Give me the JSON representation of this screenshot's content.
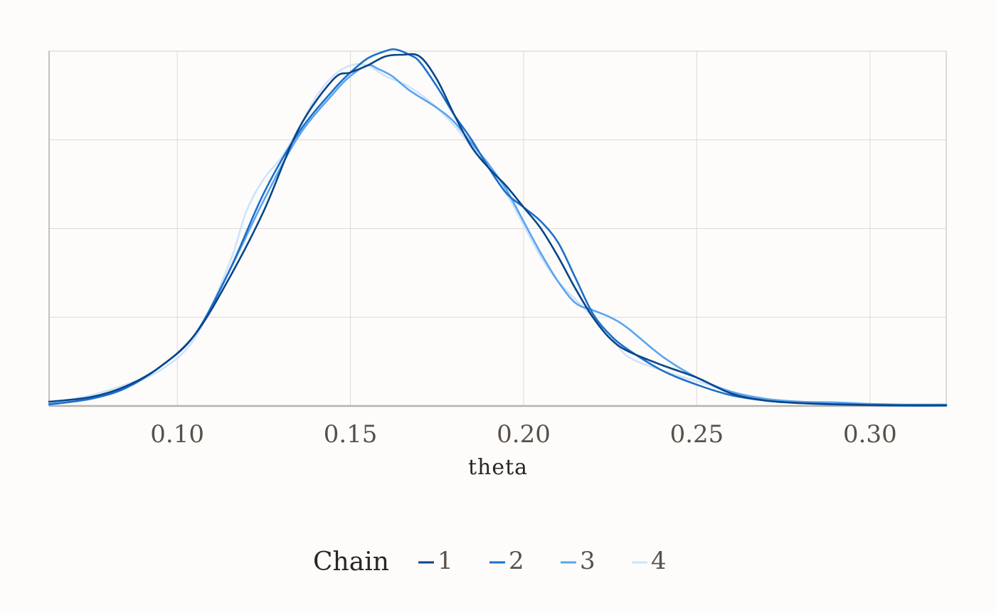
{
  "chart_data": {
    "type": "line",
    "title": "",
    "xlabel": "theta",
    "ylabel": "",
    "xlim": [
      0.063,
      0.322
    ],
    "ylim": [
      0,
      1.0
    ],
    "x_ticks": [
      0.1,
      0.15,
      0.2,
      0.25,
      0.3
    ],
    "x_tick_labels": [
      "0.10",
      "0.15",
      "0.20",
      "0.25",
      "0.30"
    ],
    "y_gridlines": [
      0.25,
      0.5,
      0.75,
      1.0
    ],
    "grid": true,
    "legend": {
      "title": "Chain",
      "position": "bottom"
    },
    "series": [
      {
        "name": "1",
        "color": "#08458a",
        "x": [
          0.063,
          0.075,
          0.085,
          0.095,
          0.105,
          0.115,
          0.125,
          0.135,
          0.145,
          0.15,
          0.155,
          0.16,
          0.165,
          0.17,
          0.175,
          0.18,
          0.185,
          0.19,
          0.195,
          0.2,
          0.205,
          0.21,
          0.215,
          0.22,
          0.225,
          0.23,
          0.24,
          0.25,
          0.26,
          0.27,
          0.28,
          0.29,
          0.3,
          0.31,
          0.322
        ],
        "y": [
          0.012,
          0.025,
          0.055,
          0.11,
          0.2,
          0.36,
          0.55,
          0.78,
          0.92,
          0.94,
          0.96,
          0.985,
          0.99,
          0.985,
          0.92,
          0.82,
          0.73,
          0.67,
          0.62,
          0.56,
          0.5,
          0.42,
          0.33,
          0.25,
          0.19,
          0.155,
          0.115,
          0.08,
          0.035,
          0.015,
          0.008,
          0.005,
          0.003,
          0.002,
          0.002
        ]
      },
      {
        "name": "2",
        "color": "#1c6fc9",
        "x": [
          0.063,
          0.075,
          0.085,
          0.095,
          0.105,
          0.115,
          0.125,
          0.135,
          0.145,
          0.15,
          0.155,
          0.16,
          0.163,
          0.167,
          0.17,
          0.175,
          0.18,
          0.185,
          0.19,
          0.195,
          0.2,
          0.205,
          0.21,
          0.215,
          0.22,
          0.225,
          0.23,
          0.24,
          0.25,
          0.26,
          0.27,
          0.28,
          0.29,
          0.3,
          0.31,
          0.322
        ],
        "y": [
          0.005,
          0.02,
          0.05,
          0.11,
          0.2,
          0.38,
          0.6,
          0.77,
          0.89,
          0.94,
          0.98,
          1.0,
          1.005,
          0.99,
          0.97,
          0.9,
          0.82,
          0.75,
          0.67,
          0.6,
          0.56,
          0.52,
          0.46,
          0.36,
          0.26,
          0.2,
          0.16,
          0.1,
          0.06,
          0.03,
          0.015,
          0.008,
          0.004,
          0.002,
          0.001,
          0.001
        ]
      },
      {
        "name": "3",
        "color": "#5aa4f0",
        "x": [
          0.063,
          0.075,
          0.085,
          0.095,
          0.105,
          0.115,
          0.125,
          0.135,
          0.145,
          0.15,
          0.155,
          0.158,
          0.162,
          0.167,
          0.175,
          0.18,
          0.185,
          0.19,
          0.195,
          0.2,
          0.205,
          0.21,
          0.215,
          0.22,
          0.225,
          0.23,
          0.24,
          0.25,
          0.26,
          0.27,
          0.28,
          0.29,
          0.3,
          0.31,
          0.322
        ],
        "y": [
          0.004,
          0.02,
          0.05,
          0.11,
          0.2,
          0.38,
          0.58,
          0.76,
          0.88,
          0.93,
          0.96,
          0.95,
          0.93,
          0.89,
          0.84,
          0.8,
          0.74,
          0.68,
          0.61,
          0.52,
          0.43,
          0.35,
          0.29,
          0.27,
          0.25,
          0.22,
          0.14,
          0.08,
          0.04,
          0.02,
          0.012,
          0.01,
          0.006,
          0.004,
          0.004
        ]
      },
      {
        "name": "4",
        "color": "#cfe3fb",
        "x": [
          0.063,
          0.075,
          0.085,
          0.095,
          0.105,
          0.115,
          0.12,
          0.125,
          0.13,
          0.135,
          0.14,
          0.145,
          0.15,
          0.155,
          0.16,
          0.165,
          0.17,
          0.175,
          0.18,
          0.185,
          0.19,
          0.195,
          0.2,
          0.205,
          0.21,
          0.215,
          0.22,
          0.225,
          0.23,
          0.24,
          0.25,
          0.26,
          0.27,
          0.28,
          0.29,
          0.3,
          0.31,
          0.322
        ],
        "y": [
          0.008,
          0.03,
          0.06,
          0.1,
          0.19,
          0.4,
          0.55,
          0.64,
          0.7,
          0.78,
          0.87,
          0.93,
          0.96,
          0.96,
          0.93,
          0.91,
          0.88,
          0.84,
          0.79,
          0.73,
          0.67,
          0.6,
          0.51,
          0.42,
          0.35,
          0.3,
          0.25,
          0.2,
          0.14,
          0.1,
          0.07,
          0.04,
          0.02,
          0.01,
          0.005,
          0.003,
          0.002,
          0.001
        ]
      }
    ]
  }
}
